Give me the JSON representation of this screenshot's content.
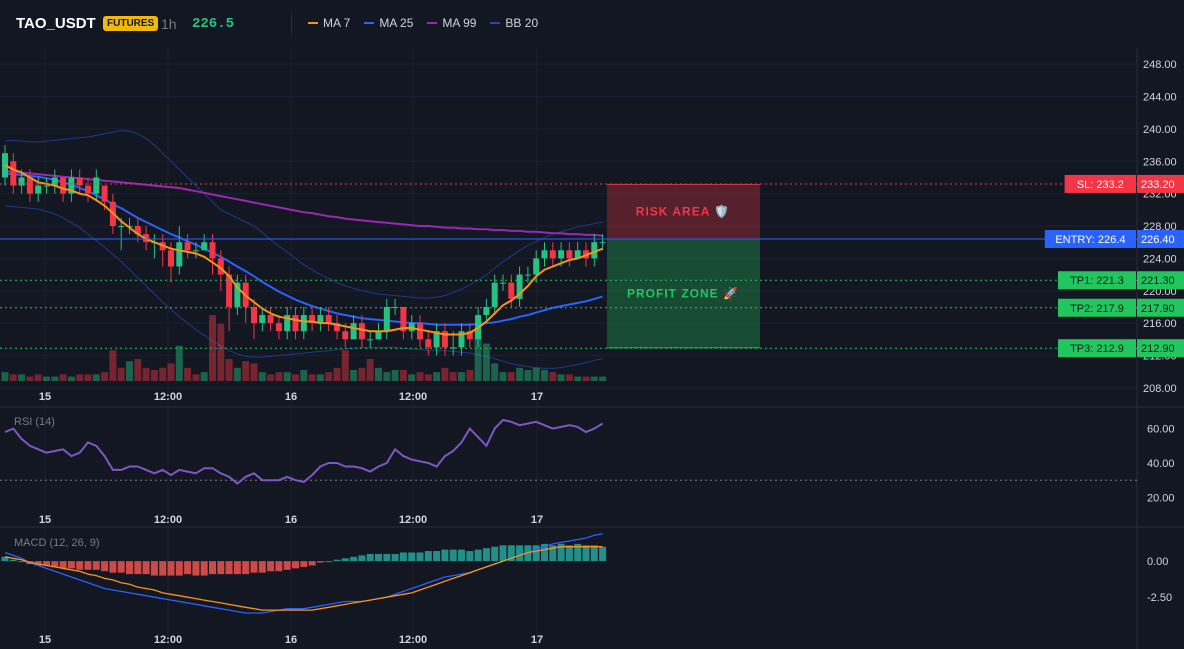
{
  "header": {
    "symbol": "TAO_USDT",
    "badge": "FUTURES",
    "interval": "1h",
    "last_price": "226.5",
    "indicators": [
      {
        "label": "MA 7",
        "color": "#f7931a"
      },
      {
        "label": "MA 25",
        "color": "#2962ff"
      },
      {
        "label": "MA 99",
        "color": "#9c27b0"
      },
      {
        "label": "BB 20",
        "color": "#1e4ba8"
      }
    ]
  },
  "chart_data": [
    {
      "type": "candlestick",
      "name": "price",
      "x_ticks": [
        "15",
        "12:00",
        "16",
        "12:00",
        "17"
      ],
      "y_ticks": [
        "248.00",
        "244.00",
        "240.00",
        "236.00",
        "232.00",
        "228.00",
        "224.00",
        "220.00",
        "216.00",
        "212.00",
        "208.00"
      ],
      "ylim": [
        206.5,
        250
      ],
      "candles": [
        [
          234,
          237,
          233,
          238
        ],
        [
          236,
          233,
          232,
          237
        ],
        [
          233,
          234,
          232,
          235
        ],
        [
          234,
          232,
          231,
          235
        ],
        [
          232,
          233,
          231,
          234
        ],
        [
          233,
          233,
          232,
          234
        ],
        [
          233,
          234,
          232,
          235
        ],
        [
          234,
          232,
          231,
          234
        ],
        [
          232,
          234,
          231,
          235
        ],
        [
          234,
          233,
          232,
          235
        ],
        [
          233,
          232,
          231,
          234
        ],
        [
          232,
          234,
          231,
          235
        ],
        [
          233,
          231,
          230,
          233
        ],
        [
          231,
          228,
          227,
          232
        ],
        [
          228,
          228,
          225,
          229
        ],
        [
          228,
          228,
          227,
          229
        ],
        [
          228,
          227,
          226,
          229
        ],
        [
          227,
          226,
          225,
          228
        ],
        [
          226,
          226,
          224,
          227
        ],
        [
          226,
          225,
          223,
          227
        ],
        [
          225,
          223,
          221,
          226
        ],
        [
          223,
          226,
          222,
          228
        ],
        [
          226,
          225,
          224,
          227
        ],
        [
          225,
          225,
          224,
          226
        ],
        [
          225,
          226,
          225,
          227
        ],
        [
          226,
          224,
          222,
          227
        ],
        [
          224,
          222,
          220,
          225
        ],
        [
          222,
          218,
          215,
          223
        ],
        [
          218,
          221,
          217,
          222
        ],
        [
          221,
          218,
          216,
          222
        ],
        [
          218,
          216,
          214,
          219
        ],
        [
          216,
          217,
          215,
          218
        ],
        [
          217,
          216,
          215,
          218
        ],
        [
          216,
          215,
          214,
          217
        ],
        [
          215,
          217,
          214,
          218
        ],
        [
          217,
          215,
          214,
          218
        ],
        [
          215,
          217,
          214,
          218
        ],
        [
          217,
          216,
          215,
          218
        ],
        [
          216,
          217,
          215,
          218
        ],
        [
          217,
          216,
          215,
          218
        ],
        [
          216,
          215,
          214,
          217
        ],
        [
          215,
          214,
          213,
          216
        ],
        [
          214,
          216,
          214,
          217
        ],
        [
          216,
          214,
          213,
          217
        ],
        [
          214,
          214,
          213,
          215
        ],
        [
          214,
          215,
          214,
          216
        ],
        [
          215,
          218,
          214,
          219
        ],
        [
          218,
          218,
          217,
          219
        ],
        [
          218,
          215,
          214,
          218
        ],
        [
          215,
          216,
          214,
          217
        ],
        [
          216,
          214,
          213,
          217
        ],
        [
          214,
          213,
          212,
          215
        ],
        [
          213,
          215,
          212,
          216
        ],
        [
          215,
          213,
          212,
          216
        ],
        [
          213,
          213,
          212,
          215
        ],
        [
          213,
          215,
          212,
          216
        ],
        [
          215,
          214,
          213,
          216
        ],
        [
          214,
          217,
          213,
          218
        ],
        [
          217,
          218,
          216,
          219
        ],
        [
          218,
          221,
          217,
          222
        ],
        [
          221,
          221,
          220,
          222
        ],
        [
          221,
          219,
          218,
          222
        ],
        [
          219,
          222,
          218,
          223
        ],
        [
          222,
          222,
          221,
          223
        ],
        [
          222,
          224,
          221,
          225
        ],
        [
          224,
          225,
          223,
          226
        ],
        [
          225,
          224,
          223,
          226
        ],
        [
          224,
          225,
          223,
          226
        ],
        [
          225,
          224,
          223,
          226
        ],
        [
          224,
          225,
          224,
          226
        ],
        [
          225,
          224,
          223,
          226
        ],
        [
          224,
          226,
          223,
          227
        ],
        [
          226,
          226,
          225,
          227
        ]
      ],
      "volumes": [
        4,
        3,
        3,
        2,
        3,
        2,
        2,
        3,
        2,
        3,
        3,
        3,
        4,
        14,
        6,
        9,
        10,
        6,
        5,
        6,
        8,
        16,
        6,
        3,
        4,
        30,
        26,
        10,
        6,
        9,
        8,
        4,
        3,
        4,
        4,
        3,
        5,
        3,
        3,
        4,
        6,
        14,
        5,
        6,
        10,
        6,
        4,
        5,
        5,
        3,
        4,
        3,
        4,
        6,
        4,
        4,
        5,
        24,
        17,
        8,
        4,
        4,
        6,
        5,
        6,
        5,
        4,
        3,
        3,
        2,
        2,
        2,
        2
      ],
      "volume_colors_up": [
        true,
        false,
        true,
        false,
        false,
        true,
        true,
        false,
        true,
        false,
        false,
        true,
        false,
        false,
        false,
        true,
        false,
        false,
        false,
        false,
        false,
        true,
        false,
        false,
        true,
        false,
        false,
        false,
        true,
        false,
        false,
        true,
        false,
        false,
        true,
        false,
        true,
        false,
        true,
        false,
        false,
        false,
        true,
        false,
        false,
        true,
        true,
        true,
        false,
        true,
        false,
        false,
        true,
        false,
        false,
        true,
        false,
        true,
        true,
        true,
        true,
        false,
        true,
        true,
        true,
        true,
        false,
        true,
        false,
        true,
        false,
        true,
        true
      ],
      "ma7": [
        235.5,
        235.0,
        234.6,
        234.0,
        233.4,
        233.2,
        233.0,
        232.6,
        232.4,
        232.0,
        231.8,
        231.2,
        230.5,
        229.6,
        228.6,
        227.8,
        227.0,
        226.4,
        226.0,
        225.6,
        225.2,
        225.0,
        224.8,
        224.6,
        224.2,
        223.5,
        222.8,
        221.8,
        220.4,
        219.4,
        218.6,
        217.8,
        217.2,
        216.8,
        216.6,
        216.4,
        216.2,
        216.2,
        216.0,
        216.0,
        215.8,
        215.6,
        215.4,
        215.2,
        215.0,
        215.0,
        215.0,
        215.2,
        215.4,
        215.4,
        215.2,
        215.0,
        214.8,
        214.6,
        214.6,
        214.6,
        214.8,
        215.4,
        216.2,
        217.2,
        218.2,
        218.8,
        219.6,
        220.6,
        221.8,
        222.6,
        223.0,
        223.4,
        223.8,
        224.0,
        224.4,
        224.8,
        225.2
      ],
      "ma25": [
        234.5,
        234.4,
        234.3,
        234.2,
        234.1,
        233.9,
        233.7,
        233.4,
        233.1,
        232.7,
        232.3,
        231.8,
        231.3,
        230.7,
        230.2,
        229.6,
        229.0,
        228.5,
        228.0,
        227.5,
        227.0,
        226.6,
        226.1,
        225.7,
        225.2,
        224.7,
        224.2,
        223.6,
        223.0,
        222.4,
        221.8,
        221.1,
        220.5,
        219.9,
        219.4,
        218.9,
        218.5,
        218.1,
        217.8,
        217.5,
        217.2,
        217.0,
        216.8,
        216.6,
        216.5,
        216.4,
        216.3,
        216.2,
        216.1,
        216.0,
        216.0,
        215.9,
        215.8,
        215.8,
        215.8,
        215.8,
        215.8,
        215.9,
        216.0,
        216.1,
        216.3,
        216.5,
        216.8,
        217.0,
        217.3,
        217.6,
        217.9,
        218.1,
        218.3,
        218.5,
        218.7,
        219.0,
        219.3
      ],
      "ma99": [
        234.8,
        234.7,
        234.6,
        234.5,
        234.4,
        234.3,
        234.2,
        234.1,
        234.0,
        233.9,
        233.8,
        233.7,
        233.6,
        233.5,
        233.4,
        233.3,
        233.2,
        233.1,
        233.0,
        232.9,
        232.8,
        232.7,
        232.5,
        232.3,
        232.1,
        231.9,
        231.7,
        231.5,
        231.3,
        231.1,
        230.9,
        230.7,
        230.5,
        230.3,
        230.1,
        229.9,
        229.7,
        229.6,
        229.4,
        229.2,
        229.1,
        228.9,
        228.8,
        228.7,
        228.6,
        228.5,
        228.4,
        228.3,
        228.2,
        228.1,
        228.0,
        228.0,
        227.9,
        227.8,
        227.8,
        227.7,
        227.7,
        227.6,
        227.6,
        227.5,
        227.5,
        227.4,
        227.4,
        227.3,
        227.3,
        227.2,
        227.1,
        227.1,
        227.0,
        227.0,
        226.9,
        226.9,
        226.8
      ],
      "bb_upper": [
        238.5,
        238.6,
        238.5,
        238.4,
        238.4,
        238.5,
        238.6,
        238.7,
        238.8,
        238.9,
        239.0,
        239.2,
        239.4,
        239.6,
        239.8,
        239.7,
        239.4,
        238.8,
        238.0,
        237.0,
        236.0,
        235.0,
        234.0,
        233.0,
        232.0,
        231.0,
        230.0,
        229.5,
        229.0,
        228.5,
        228.0,
        227.2,
        226.3,
        225.5,
        224.8,
        224.0,
        223.2,
        222.6,
        222.0,
        221.5,
        221.0,
        220.6,
        220.3,
        220.0,
        219.8,
        219.6,
        219.5,
        219.4,
        219.3,
        219.2,
        219.1,
        219.1,
        219.2,
        219.4,
        219.8,
        220.2,
        220.7,
        221.3,
        222.0,
        222.8,
        223.6,
        224.3,
        225.0,
        225.6,
        226.1,
        226.6,
        227.0,
        227.3,
        227.6,
        227.9,
        228.1,
        228.3,
        228.5
      ],
      "bb_lower": [
        230.5,
        230.4,
        230.3,
        230.2,
        230.1,
        229.8,
        229.5,
        229.0,
        228.4,
        227.8,
        227.0,
        226.2,
        225.4,
        224.5,
        223.6,
        222.6,
        221.6,
        220.6,
        219.6,
        218.6,
        217.7,
        216.8,
        216.0,
        215.2,
        214.5,
        213.8,
        213.2,
        212.6,
        212.2,
        211.9,
        211.8,
        211.8,
        211.9,
        212.0,
        212.1,
        212.2,
        212.3,
        212.4,
        212.5,
        212.6,
        212.7,
        212.8,
        212.9,
        213.0,
        213.0,
        213.0,
        213.0,
        213.0,
        212.9,
        212.8,
        212.7,
        212.6,
        212.6,
        212.6,
        212.5,
        212.4,
        212.3,
        212.1,
        211.9,
        211.6,
        211.3,
        211.0,
        210.8,
        210.6,
        210.5,
        210.4,
        210.4,
        210.5,
        210.7,
        210.9,
        211.1,
        211.4,
        211.6
      ],
      "levels": [
        {
          "label": "SL: 233.2",
          "value_text": "233.20",
          "value": 233.2,
          "color": "#f23645",
          "style": "dotted"
        },
        {
          "label": "ENTRY: 226.4",
          "value_text": "226.40",
          "value": 226.4,
          "color": "#2962ff",
          "style": "solid"
        },
        {
          "label": "TP1: 221.3",
          "value_text": "221.30",
          "value": 221.3,
          "color": "#22c55e",
          "style": "dotted"
        },
        {
          "label": "TP2: 217.9",
          "value_text": "217.90",
          "value": 217.9,
          "color": "#22c55e",
          "style": "dotted"
        },
        {
          "label": "TP3: 212.9",
          "value_text": "212.90",
          "value": 212.9,
          "color": "#22c55e",
          "style": "dotted"
        }
      ],
      "zones": [
        {
          "label": "RISK AREA 🛡️",
          "from": 226.4,
          "to": 233.2,
          "color": "#f23645"
        },
        {
          "label": "PROFIT ZONE 🚀",
          "from": 212.9,
          "to": 226.4,
          "color": "#22c55e"
        }
      ]
    },
    {
      "type": "line",
      "name": "RSI (14)",
      "y_ticks": [
        "60.00",
        "40.00",
        "20.00"
      ],
      "ylim": [
        15,
        72
      ],
      "levels": [
        30
      ],
      "values": [
        58,
        60,
        54,
        50,
        48,
        46,
        47,
        48,
        44,
        46,
        52,
        50,
        44,
        36,
        36,
        38,
        38,
        36,
        34,
        36,
        33,
        36,
        35,
        34,
        37,
        37,
        34,
        32,
        28,
        32,
        34,
        30,
        30,
        30,
        32,
        30,
        29,
        33,
        38,
        40,
        40,
        38,
        38,
        37,
        35,
        38,
        40,
        48,
        44,
        42,
        41,
        40,
        38,
        44,
        47,
        52,
        60,
        55,
        50,
        60,
        65,
        64,
        62,
        63,
        64,
        62,
        60,
        61,
        62,
        61,
        58,
        60,
        63
      ]
    },
    {
      "type": "bar",
      "name": "MACD (12, 26, 9)",
      "y_ticks": [
        "0.00",
        "-2.50"
      ],
      "ylim": [
        -4.5,
        2.3
      ],
      "histogram": [
        0.3,
        0.1,
        0.0,
        -0.2,
        -0.3,
        -0.3,
        -0.4,
        -0.5,
        -0.5,
        -0.6,
        -0.6,
        -0.6,
        -0.7,
        -0.8,
        -0.8,
        -0.9,
        -0.9,
        -0.9,
        -1.0,
        -1.0,
        -1.0,
        -1.0,
        -0.9,
        -1.0,
        -1.0,
        -0.9,
        -0.9,
        -0.9,
        -0.9,
        -0.9,
        -0.8,
        -0.8,
        -0.7,
        -0.7,
        -0.6,
        -0.5,
        -0.4,
        -0.3,
        -0.1,
        0.0,
        0.1,
        0.2,
        0.3,
        0.4,
        0.5,
        0.5,
        0.5,
        0.5,
        0.6,
        0.6,
        0.6,
        0.7,
        0.7,
        0.8,
        0.8,
        0.8,
        0.7,
        0.8,
        0.9,
        1.0,
        1.1,
        1.1,
        1.1,
        1.1,
        1.1,
        1.2,
        1.1,
        1.2,
        1.1,
        1.2,
        1.1,
        1.1,
        1.0
      ],
      "macd": [
        0.6,
        0.4,
        0.2,
        -0.1,
        -0.3,
        -0.5,
        -0.7,
        -0.9,
        -1.1,
        -1.3,
        -1.5,
        -1.7,
        -1.9,
        -2.0,
        -2.1,
        -2.2,
        -2.3,
        -2.4,
        -2.5,
        -2.6,
        -2.7,
        -2.8,
        -2.9,
        -3.0,
        -3.1,
        -3.2,
        -3.3,
        -3.4,
        -3.5,
        -3.6,
        -3.6,
        -3.6,
        -3.5,
        -3.4,
        -3.3,
        -3.3,
        -3.3,
        -3.2,
        -3.1,
        -3.0,
        -2.9,
        -2.8,
        -2.8,
        -2.8,
        -2.7,
        -2.6,
        -2.5,
        -2.3,
        -2.1,
        -1.9,
        -1.7,
        -1.5,
        -1.3,
        -1.1,
        -1.0,
        -0.9,
        -0.8,
        -0.6,
        -0.4,
        -0.2,
        0.0,
        0.2,
        0.4,
        0.6,
        0.8,
        1.0,
        1.2,
        1.3,
        1.4,
        1.5,
        1.6,
        1.8,
        1.9
      ],
      "signal": [
        0.3,
        0.2,
        0.1,
        -0.1,
        -0.2,
        -0.3,
        -0.4,
        -0.5,
        -0.6,
        -0.7,
        -0.9,
        -1.0,
        -1.2,
        -1.3,
        -1.5,
        -1.6,
        -1.8,
        -1.9,
        -2.0,
        -2.2,
        -2.3,
        -2.4,
        -2.5,
        -2.6,
        -2.7,
        -2.8,
        -2.9,
        -3.0,
        -3.1,
        -3.2,
        -3.3,
        -3.4,
        -3.4,
        -3.4,
        -3.4,
        -3.4,
        -3.4,
        -3.4,
        -3.3,
        -3.2,
        -3.1,
        -3.0,
        -2.9,
        -2.8,
        -2.7,
        -2.6,
        -2.5,
        -2.4,
        -2.3,
        -2.2,
        -2.0,
        -1.8,
        -1.6,
        -1.4,
        -1.2,
        -1.0,
        -0.8,
        -0.6,
        -0.4,
        -0.2,
        0.0,
        0.2,
        0.4,
        0.6,
        0.7,
        0.8,
        0.9,
        1.0,
        1.0,
        1.0,
        1.0,
        1.0,
        1.0
      ]
    }
  ]
}
